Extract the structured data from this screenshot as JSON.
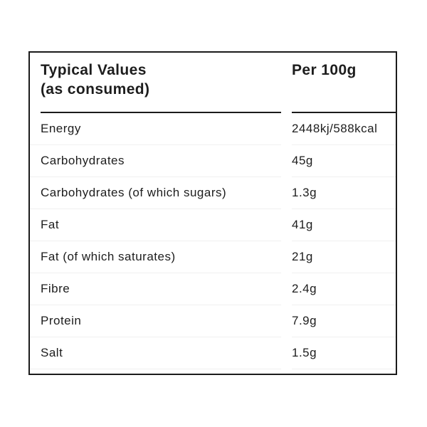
{
  "page": {
    "background_color": "#ffffff",
    "text_color": "#1d1d1d",
    "border_color": "#1b1b1b",
    "separator_color": "#f0f0f0"
  },
  "table": {
    "header": {
      "col1": "Typical Values\n(as consumed)",
      "col2": "Per 100g"
    },
    "rows": [
      {
        "label": "Energy",
        "value": "2448kj/588kcal"
      },
      {
        "label": "Carbohydrates",
        "value": "45g"
      },
      {
        "label": "Carbohydrates (of which sugars)",
        "value": "1.3g"
      },
      {
        "label": "Fat",
        "value": "41g"
      },
      {
        "label": "Fat (of which saturates)",
        "value": "21g"
      },
      {
        "label": "Fibre",
        "value": "2.4g"
      },
      {
        "label": "Protein",
        "value": "7.9g"
      },
      {
        "label": "Salt",
        "value": "1.5g"
      }
    ]
  }
}
